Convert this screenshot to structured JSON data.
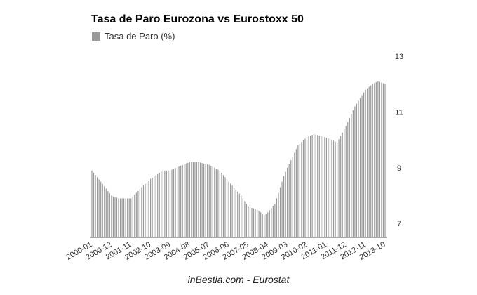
{
  "source": "inBestia.com - Eurostat",
  "chart_data": {
    "type": "bar",
    "title": "Tasa de Paro Eurozona vs Eurostoxx 50",
    "legend_position": "top-left",
    "grid": false,
    "xlabel": "",
    "ylabel": "",
    "ylim": [
      6.5,
      13
    ],
    "y_ticks": [
      "7",
      "9",
      "11",
      "13"
    ],
    "x_tick_labels": [
      "2000-01",
      "2000-12",
      "2001-11",
      "2002-10",
      "2003-09",
      "2004-08",
      "2005-07",
      "2006-06",
      "2007-05",
      "2008-04",
      "2009-03",
      "2010-02",
      "2011-01",
      "2011-12",
      "2012-11",
      "2013-10"
    ],
    "series": [
      {
        "name": "Tasa de Paro (%)",
        "color": "#999999",
        "start": "2000-01",
        "end": "2013-10",
        "anchors": [
          [
            "2000-01",
            8.9
          ],
          [
            "2000-06",
            8.5
          ],
          [
            "2000-12",
            8.0
          ],
          [
            "2001-04",
            7.9
          ],
          [
            "2001-11",
            7.9
          ],
          [
            "2002-05",
            8.3
          ],
          [
            "2002-10",
            8.6
          ],
          [
            "2003-05",
            8.9
          ],
          [
            "2003-09",
            8.9
          ],
          [
            "2004-04",
            9.1
          ],
          [
            "2004-08",
            9.2
          ],
          [
            "2005-01",
            9.2
          ],
          [
            "2005-07",
            9.1
          ],
          [
            "2006-01",
            8.9
          ],
          [
            "2006-06",
            8.5
          ],
          [
            "2007-01",
            8.0
          ],
          [
            "2007-05",
            7.6
          ],
          [
            "2007-10",
            7.5
          ],
          [
            "2008-02",
            7.3
          ],
          [
            "2008-04",
            7.4
          ],
          [
            "2008-08",
            7.7
          ],
          [
            "2009-01",
            8.7
          ],
          [
            "2009-03",
            9.0
          ],
          [
            "2009-09",
            9.8
          ],
          [
            "2010-02",
            10.1
          ],
          [
            "2010-06",
            10.2
          ],
          [
            "2010-12",
            10.1
          ],
          [
            "2011-04",
            10.0
          ],
          [
            "2011-07",
            9.9
          ],
          [
            "2011-12",
            10.5
          ],
          [
            "2012-05",
            11.2
          ],
          [
            "2012-11",
            11.8
          ],
          [
            "2013-03",
            12.0
          ],
          [
            "2013-06",
            12.1
          ],
          [
            "2013-10",
            12.0
          ]
        ]
      }
    ]
  }
}
